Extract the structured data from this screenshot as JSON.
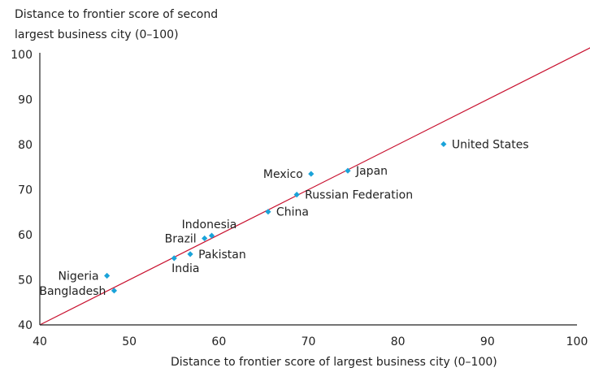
{
  "chart_data": {
    "type": "scatter",
    "ylabel_lines": [
      "Distance to frontier score of second",
      "largest business city (0–100)"
    ],
    "xlabel": "Distance to frontier score of largest business city (0–100)",
    "xlim": [
      40,
      100
    ],
    "ylim": [
      40,
      100
    ],
    "xticks": [
      "40",
      "50",
      "60",
      "70",
      "80",
      "90",
      "100"
    ],
    "yticks": [
      "40",
      "50",
      "60",
      "70",
      "80",
      "90",
      "100"
    ],
    "reference_line": "45-degree line",
    "colors": {
      "points": "#1aa3d9",
      "line": "#c8102e",
      "axis": "#222222"
    },
    "points": [
      {
        "label": "Bangladesh",
        "x": 48.3,
        "y": 47.6,
        "label_side": "left"
      },
      {
        "label": "Nigeria",
        "x": 47.5,
        "y": 50.9,
        "label_side": "left"
      },
      {
        "label": "India",
        "x": 55.0,
        "y": 54.8,
        "label_side": "below"
      },
      {
        "label": "Pakistan",
        "x": 56.8,
        "y": 55.7,
        "label_side": "right"
      },
      {
        "label": "Brazil",
        "x": 58.4,
        "y": 59.2,
        "label_side": "left"
      },
      {
        "label": "Indonesia",
        "x": 59.2,
        "y": 59.8,
        "label_side": "above"
      },
      {
        "label": "China",
        "x": 65.5,
        "y": 65.1,
        "label_side": "right"
      },
      {
        "label": "Russian Federation",
        "x": 68.7,
        "y": 68.9,
        "label_side": "right"
      },
      {
        "label": "Mexico",
        "x": 70.3,
        "y": 73.5,
        "label_side": "left"
      },
      {
        "label": "Japan",
        "x": 74.4,
        "y": 74.2,
        "label_side": "right"
      },
      {
        "label": "United States",
        "x": 85.1,
        "y": 80.1,
        "label_side": "right"
      }
    ]
  }
}
